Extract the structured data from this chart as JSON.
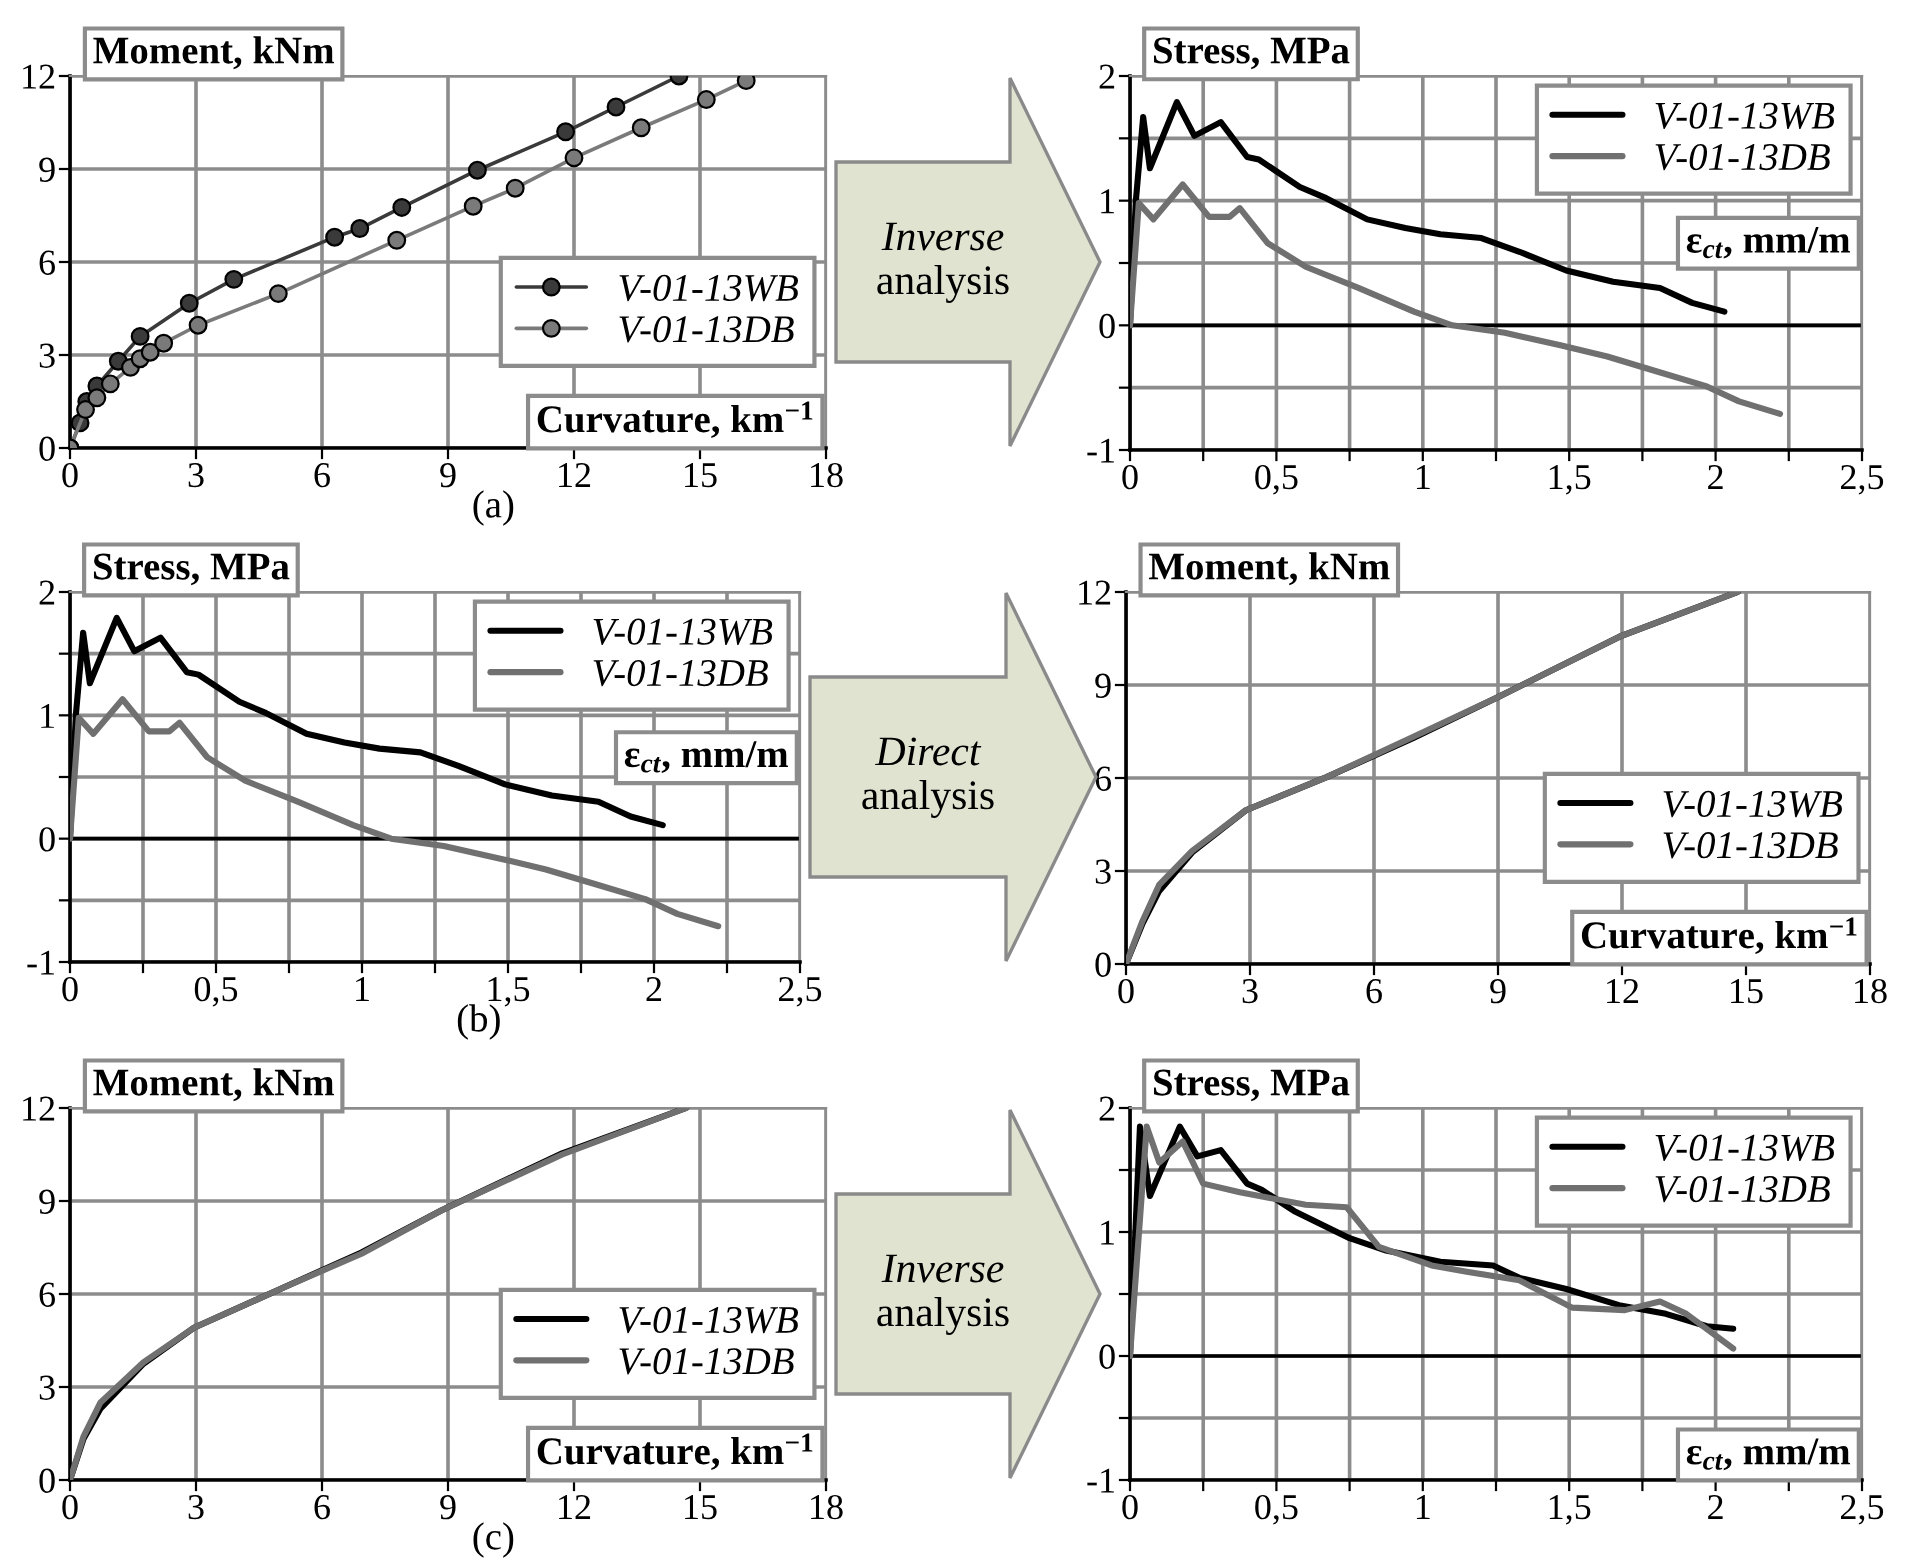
{
  "chart_data": [
    {
      "type": "line",
      "ylabel": "Moment, kNm",
      "xlabel": "Curvature, km$^{−1}$",
      "marker": "circle",
      "legend": "right",
      "grid": true,
      "annotations": [
        "(a)",
        "Inverse analysis"
      ],
      "xlim": [
        0,
        18
      ],
      "xticks": [
        0,
        3,
        6,
        9,
        12,
        15,
        18
      ],
      "ylim": [
        0,
        12
      ],
      "yticks": [
        0,
        3,
        6,
        9,
        12
      ],
      "series": [
        {
          "name": "V-01-13WB",
          "color": "#3a3a3a",
          "x": [
            0,
            0.24,
            0.4,
            0.64,
            1.15,
            1.67,
            2.84,
            3.9,
            6.3,
            6.9,
            7.9,
            9.7,
            11.8,
            13.0,
            14.5
          ],
          "values": [
            0,
            0.81,
            1.5,
            2.0,
            2.8,
            3.6,
            4.67,
            5.44,
            6.8,
            7.08,
            7.76,
            8.96,
            10.2,
            11.0,
            12.0
          ]
        },
        {
          "name": "V-01-13DB",
          "color": "#7a7a7a",
          "x": [
            0,
            0.37,
            0.64,
            0.96,
            1.44,
            1.67,
            1.91,
            2.23,
            3.05,
            4.96,
            7.78,
            9.6,
            10.6,
            12.0,
            13.6,
            15.15,
            16.1
          ],
          "values": [
            0,
            1.24,
            1.62,
            2.07,
            2.6,
            2.88,
            3.09,
            3.38,
            3.96,
            4.98,
            6.7,
            7.8,
            8.38,
            9.36,
            10.33,
            11.24,
            11.85
          ]
        }
      ]
    },
    {
      "type": "line",
      "ylabel": "Stress, MPa",
      "xlabel": "ε$_{ct}$, mm/m",
      "legend": "top right",
      "grid": true,
      "xlim": [
        0,
        2.5
      ],
      "xticks": [
        0,
        {
          "value": 0.25,
          "label": null
        },
        {
          "value": 0.5,
          "label": "0,5"
        },
        {
          "value": 0.75,
          "label": null
        },
        1,
        {
          "value": 1.25,
          "label": null
        },
        {
          "value": 1.5,
          "label": "1,5"
        },
        {
          "value": 1.75,
          "label": null
        },
        2,
        {
          "value": 2.25,
          "label": null
        },
        {
          "value": 2.5,
          "label": "2,5"
        }
      ],
      "ylim": [
        -1,
        2
      ],
      "yticks": [
        -1,
        {
          "value": -0.5,
          "label": null
        },
        0,
        {
          "value": 0.5,
          "label": null
        },
        1,
        {
          "value": 1.5,
          "label": null
        },
        2
      ],
      "ref_lines": [
        {
          "axis": "y",
          "value": 0,
          "color": "#000000"
        }
      ],
      "series": [
        {
          "name": "V-01-13WB",
          "color": "#000000",
          "x": [
            0,
            0.02,
            0.045,
            0.068,
            0.16,
            0.22,
            0.31,
            0.4,
            0.44,
            0.58,
            0.67,
            0.81,
            0.94,
            1.06,
            1.2,
            1.33,
            1.49,
            1.65,
            1.81,
            1.92,
            2.03
          ],
          "values": [
            0,
            1.0,
            1.67,
            1.26,
            1.79,
            1.52,
            1.63,
            1.35,
            1.33,
            1.11,
            1.02,
            0.85,
            0.78,
            0.73,
            0.7,
            0.59,
            0.44,
            0.35,
            0.3,
            0.18,
            0.11
          ]
        },
        {
          "name": "V-01-13DB",
          "color": "#707070",
          "x": [
            0,
            0.03,
            0.08,
            0.18,
            0.27,
            0.34,
            0.375,
            0.47,
            0.6,
            0.78,
            0.97,
            1.1,
            1.28,
            1.47,
            1.63,
            1.8,
            1.97,
            2.08,
            2.22
          ],
          "values": [
            0,
            0.98,
            0.85,
            1.13,
            0.87,
            0.87,
            0.94,
            0.66,
            0.47,
            0.3,
            0.11,
            0.0,
            -0.06,
            -0.16,
            -0.25,
            -0.37,
            -0.49,
            -0.61,
            -0.71
          ]
        }
      ]
    },
    {
      "type": "line",
      "ylabel": "Stress, MPa",
      "xlabel": "ε$_{ct}$, mm/m",
      "legend": "top right",
      "grid": true,
      "annotations": [
        "(b)",
        "Direct analysis"
      ],
      "xlim": [
        0,
        2.5
      ],
      "xticks": [
        0,
        {
          "value": 0.25,
          "label": null
        },
        {
          "value": 0.5,
          "label": "0,5"
        },
        {
          "value": 0.75,
          "label": null
        },
        1,
        {
          "value": 1.25,
          "label": null
        },
        {
          "value": 1.5,
          "label": "1,5"
        },
        {
          "value": 1.75,
          "label": null
        },
        2,
        {
          "value": 2.25,
          "label": null
        },
        {
          "value": 2.5,
          "label": "2,5"
        }
      ],
      "ylim": [
        -1,
        2
      ],
      "yticks": [
        -1,
        {
          "value": -0.5,
          "label": null
        },
        0,
        {
          "value": 0.5,
          "label": null
        },
        1,
        {
          "value": 1.5,
          "label": null
        },
        2
      ],
      "ref_lines": [
        {
          "axis": "y",
          "value": 0,
          "color": "#000000"
        }
      ],
      "series": [
        {
          "name": "V-01-13WB",
          "color": "#000000",
          "x": [
            0,
            0.02,
            0.045,
            0.068,
            0.16,
            0.22,
            0.31,
            0.4,
            0.44,
            0.58,
            0.67,
            0.81,
            0.94,
            1.06,
            1.2,
            1.33,
            1.49,
            1.65,
            1.81,
            1.92,
            2.03
          ],
          "values": [
            0,
            1.0,
            1.67,
            1.26,
            1.79,
            1.52,
            1.63,
            1.35,
            1.33,
            1.11,
            1.02,
            0.85,
            0.78,
            0.73,
            0.7,
            0.59,
            0.44,
            0.35,
            0.3,
            0.18,
            0.11
          ]
        },
        {
          "name": "V-01-13DB",
          "color": "#707070",
          "x": [
            0,
            0.03,
            0.08,
            0.18,
            0.27,
            0.34,
            0.375,
            0.47,
            0.6,
            0.78,
            0.97,
            1.1,
            1.28,
            1.47,
            1.63,
            1.8,
            1.97,
            2.08,
            2.22
          ],
          "values": [
            0,
            0.98,
            0.85,
            1.13,
            0.87,
            0.87,
            0.94,
            0.66,
            0.47,
            0.3,
            0.11,
            0.0,
            -0.06,
            -0.16,
            -0.25,
            -0.37,
            -0.49,
            -0.61,
            -0.71
          ]
        }
      ]
    },
    {
      "type": "line",
      "ylabel": "Moment, kNm",
      "xlabel": "Curvature, km$^{−1}$",
      "legend": "bottom right",
      "grid": true,
      "xlim": [
        0,
        18
      ],
      "xticks": [
        0,
        3,
        6,
        9,
        12,
        15,
        18
      ],
      "ylim": [
        0,
        12
      ],
      "yticks": [
        0,
        3,
        6,
        9,
        12
      ],
      "series": [
        {
          "name": "V-01-13WB",
          "color": "#000000",
          "x": [
            0,
            0.4,
            0.8,
            1.6,
            2.9,
            4.84,
            6.94,
            9.03,
            11.94,
            14.8
          ],
          "values": [
            0,
            1.3,
            2.35,
            3.6,
            4.96,
            6.02,
            7.28,
            8.63,
            10.56,
            12.0
          ]
        },
        {
          "name": "V-01-13DB",
          "color": "#707070",
          "x": [
            0,
            0.4,
            0.8,
            1.6,
            2.9,
            4.84,
            6.94,
            9.03,
            11.94,
            14.8
          ],
          "values": [
            0,
            1.39,
            2.55,
            3.65,
            4.96,
            6.02,
            7.32,
            8.63,
            10.56,
            12.0
          ]
        }
      ]
    },
    {
      "type": "line",
      "ylabel": "Moment, kNm",
      "xlabel": "Curvature, km$^{−1}$",
      "legend": "bottom right",
      "grid": true,
      "annotations": [
        "(c)",
        "Inverse analysis"
      ],
      "xlim": [
        0,
        18
      ],
      "xticks": [
        0,
        3,
        6,
        9,
        12,
        15,
        18
      ],
      "ylim": [
        0,
        12
      ],
      "yticks": [
        0,
        3,
        6,
        9,
        12
      ],
      "series": [
        {
          "name": "V-01-13WB",
          "color": "#000000",
          "x": [
            0,
            0.32,
            0.72,
            1.75,
            2.95,
            5.02,
            6.94,
            8.85,
            11.72,
            14.67
          ],
          "values": [
            0,
            1.32,
            2.29,
            3.75,
            4.91,
            6.17,
            7.34,
            8.7,
            10.54,
            12.0
          ]
        },
        {
          "name": "V-01-13DB",
          "color": "#707070",
          "x": [
            0,
            0.32,
            0.72,
            1.75,
            2.95,
            5.02,
            6.94,
            8.85,
            11.72,
            14.67
          ],
          "values": [
            0,
            1.4,
            2.49,
            3.8,
            4.91,
            6.17,
            7.3,
            8.7,
            10.5,
            12.0
          ]
        }
      ]
    },
    {
      "type": "line",
      "ylabel": "Stress, MPa",
      "xlabel": "ε$_{ct}$, mm/m",
      "legend": "top right",
      "grid": true,
      "xlim": [
        0,
        2.5
      ],
      "xticks": [
        0,
        {
          "value": 0.25,
          "label": null
        },
        {
          "value": 0.5,
          "label": "0,5"
        },
        {
          "value": 0.75,
          "label": null
        },
        1,
        {
          "value": 1.25,
          "label": null
        },
        {
          "value": 1.5,
          "label": "1,5"
        },
        {
          "value": 1.75,
          "label": null
        },
        2,
        {
          "value": 2.25,
          "label": null
        },
        {
          "value": 2.5,
          "label": "2,5"
        }
      ],
      "ylim": [
        -1,
        2
      ],
      "yticks": [
        -1,
        {
          "value": -0.5,
          "label": null
        },
        0,
        {
          "value": 0.5,
          "label": null
        },
        1,
        {
          "value": 1.5,
          "label": null
        },
        2
      ],
      "ref_lines": [
        {
          "axis": "y",
          "value": 0,
          "color": "#000000"
        }
      ],
      "series": [
        {
          "name": "V-01-13WB",
          "color": "#000000",
          "x": [
            0,
            0.034,
            0.068,
            0.17,
            0.23,
            0.31,
            0.4,
            0.45,
            0.56,
            0.75,
            0.875,
            1.06,
            1.24,
            1.33,
            1.49,
            1.67,
            1.83,
            1.97,
            2.06
          ],
          "values": [
            0,
            1.85,
            1.29,
            1.85,
            1.61,
            1.66,
            1.39,
            1.34,
            1.17,
            0.95,
            0.85,
            0.76,
            0.73,
            0.63,
            0.54,
            0.41,
            0.34,
            0.24,
            0.22
          ]
        },
        {
          "name": "V-01-13DB",
          "color": "#707070",
          "x": [
            0,
            0.057,
            0.1,
            0.18,
            0.25,
            0.375,
            0.6,
            0.74,
            0.85,
            1.03,
            1.15,
            1.33,
            1.51,
            1.69,
            1.81,
            1.9,
            2.06
          ],
          "values": [
            0,
            1.85,
            1.56,
            1.73,
            1.39,
            1.32,
            1.22,
            1.2,
            0.88,
            0.73,
            0.68,
            0.61,
            0.39,
            0.37,
            0.44,
            0.34,
            0.06
          ]
        }
      ]
    }
  ]
}
